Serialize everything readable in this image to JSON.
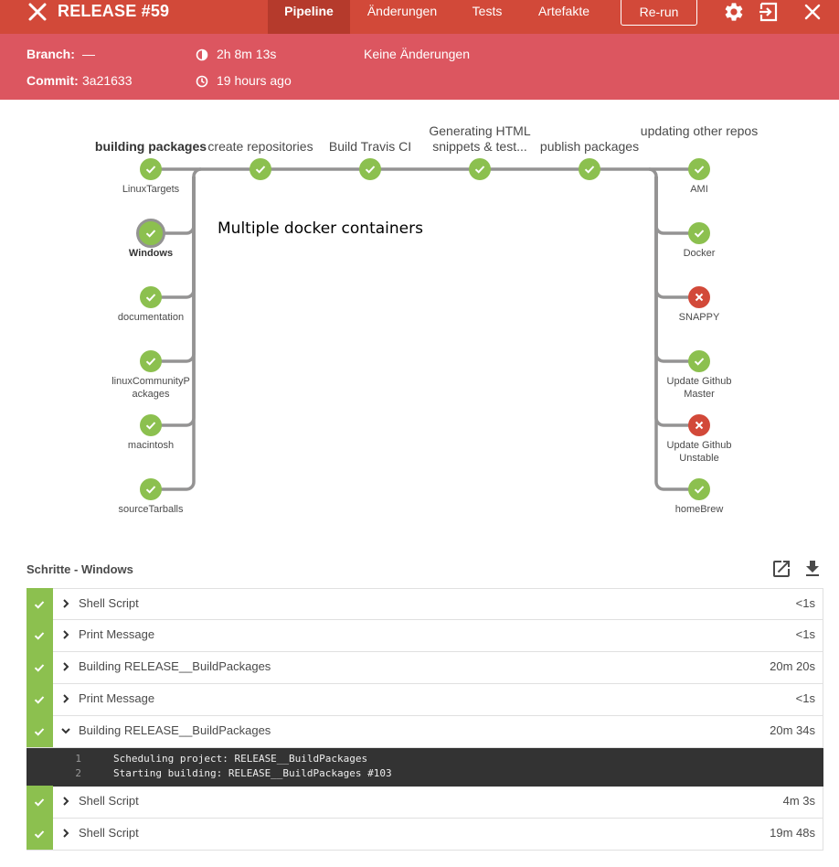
{
  "header": {
    "title": "RELEASE #59",
    "tabs": [
      {
        "label": "Pipeline",
        "active": true
      },
      {
        "label": "Änderungen",
        "active": false
      },
      {
        "label": "Tests",
        "active": false
      },
      {
        "label": "Artefakte",
        "active": false
      }
    ],
    "rerun_label": "Re-run",
    "icons": [
      "close-icon",
      "gear-icon",
      "exit-icon",
      "close-icon"
    ]
  },
  "summary": {
    "branch_label": "Branch:",
    "branch_value": "—",
    "commit_label": "Commit:",
    "commit_value": "3a21633",
    "duration": "2h 8m 13s",
    "time_ago": "19 hours ago",
    "changes": "Keine Änderungen"
  },
  "pipeline": {
    "stages": [
      {
        "title": "building packages",
        "bold": true
      },
      {
        "title": "create repositories"
      },
      {
        "title": "Build Travis CI"
      },
      {
        "title": "Generating HTML snippets & test..."
      },
      {
        "title": "publish packages"
      },
      {
        "title": "updating other repos"
      }
    ],
    "left_branches": [
      {
        "label": "LinuxTargets",
        "status": "success"
      },
      {
        "label": "Windows",
        "status": "success",
        "selected": true
      },
      {
        "label": "documentation",
        "status": "success"
      },
      {
        "label": "linuxCommunityPackages",
        "status": "success"
      },
      {
        "label": "macintosh",
        "status": "success"
      },
      {
        "label": "sourceTarballs",
        "status": "success"
      }
    ],
    "right_branches": [
      {
        "label": "AMI",
        "status": "success"
      },
      {
        "label": "Docker",
        "status": "success"
      },
      {
        "label": "SNAPPY",
        "status": "failed"
      },
      {
        "label": "Update Github Master",
        "status": "success"
      },
      {
        "label": "Update Github Unstable",
        "status": "failed"
      },
      {
        "label": "homeBrew",
        "status": "success"
      }
    ],
    "annotation": "Multiple docker containers"
  },
  "steps": {
    "title": "Schritte - Windows",
    "items": [
      {
        "name": "Shell Script",
        "duration": "<1s",
        "expanded": false
      },
      {
        "name": "Print Message",
        "duration": "<1s",
        "expanded": false
      },
      {
        "name": "Building RELEASE__BuildPackages",
        "duration": "20m 20s",
        "expanded": false
      },
      {
        "name": "Print Message",
        "duration": "<1s",
        "expanded": false
      },
      {
        "name": "Building RELEASE__BuildPackages",
        "duration": "20m 34s",
        "expanded": true
      },
      {
        "name": "Shell Script",
        "duration": "4m 3s",
        "expanded": false
      },
      {
        "name": "Shell Script",
        "duration": "19m 48s",
        "expanded": false
      }
    ],
    "log": [
      {
        "line": "1",
        "text": "Scheduling project: RELEASE__BuildPackages"
      },
      {
        "line": "2",
        "text": "Starting building: RELEASE__BuildPackages #103"
      }
    ]
  },
  "colors": {
    "header": "#d24939",
    "subheader": "#dc5660",
    "success": "#8cc04f",
    "failed": "#d24939",
    "connector": "#949393"
  }
}
